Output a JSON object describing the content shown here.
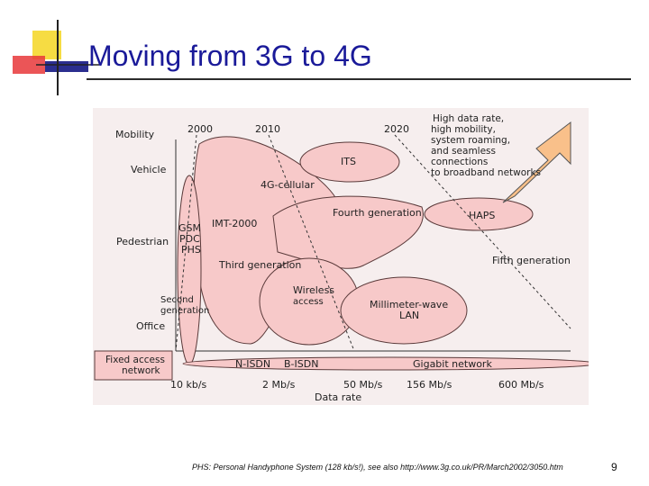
{
  "slide": {
    "title": "Moving from 3G to 4G",
    "footnote": "PHS: Personal Handyphone System (128 kb/s!), see also http://www.3g.co.uk/PR/March2002/3050.htm",
    "page_number": "9"
  },
  "colors": {
    "title": "#1a1a99",
    "figure_bg": "#f6eeee",
    "bubble_fill": "#f7c9c9",
    "bubble_stroke": "#5a3a3a",
    "arrow_fill": "#f9c08a",
    "logo_yellow": "#f6dc43",
    "logo_red": "#e8373a",
    "logo_blue": "#2b2e8f"
  },
  "diagram": {
    "mobility_axis": {
      "title": "Mobility",
      "levels": [
        "Vehicle",
        "Pedestrian",
        "Office"
      ],
      "fixed": [
        "Fixed access",
        "network"
      ],
      "second_gen": [
        "Second",
        "generation"
      ]
    },
    "years": [
      "2000",
      "2010",
      "2020"
    ],
    "rate_axis": {
      "ticks": [
        "10 kb/s",
        "2 Mb/s",
        "50 Mb/s",
        "156 Mb/s",
        "600 Mb/s"
      ],
      "title": "Data rate"
    },
    "systems": {
      "gsm": "GSM",
      "pdc": "PDC",
      "phs": "PHS",
      "imt": "IMT-2000",
      "third": "Third generation",
      "cellular4g": "4G-cellular",
      "its": "ITS",
      "fourth": "Fourth generation",
      "haps": "HAPS",
      "fifth": "Fifth generation",
      "wireless": [
        "Wireless",
        "access"
      ],
      "mmwave": [
        "Millimeter-wave",
        "LAN"
      ],
      "nisdn": "N-ISDN",
      "bisdn": "B-ISDN",
      "gigabit": "Gigabit network"
    },
    "arrow_text": [
      "High data rate,",
      "high mobility,",
      "system roaming,",
      "and seamless",
      "connections",
      "to broadband networks"
    ]
  }
}
